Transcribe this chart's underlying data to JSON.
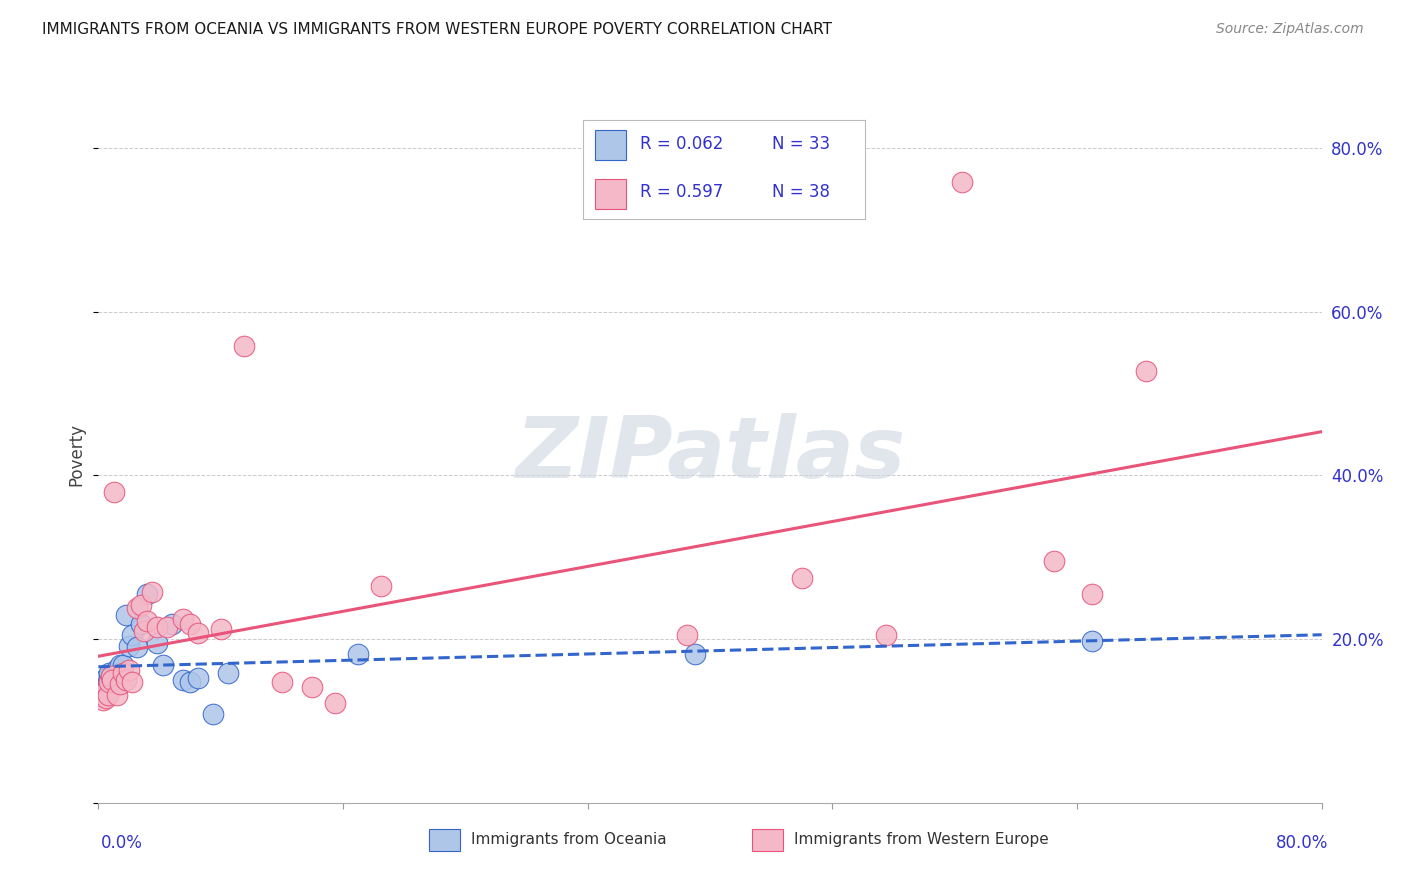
{
  "title": "IMMIGRANTS FROM OCEANIA VS IMMIGRANTS FROM WESTERN EUROPE POVERTY CORRELATION CHART",
  "source": "Source: ZipAtlas.com",
  "ylabel": "Poverty",
  "xlim": [
    0.0,
    0.8
  ],
  "ylim": [
    -0.02,
    0.92
  ],
  "plot_ylim": [
    0.0,
    0.85
  ],
  "ytick_values": [
    0.0,
    0.2,
    0.4,
    0.6,
    0.8
  ],
  "grid_color": "#cccccc",
  "background_color": "#ffffff",
  "series1_name": "Immigrants from Oceania",
  "series1_color": "#aec6e8",
  "series1_line_color": "#3366cc",
  "series1_R": 0.062,
  "series1_N": 33,
  "series2_name": "Immigrants from Western Europe",
  "series2_color": "#f4b8c8",
  "series2_line_color": "#e8547a",
  "series2_R": 0.597,
  "series2_N": 38,
  "legend_color": "#3333cc",
  "watermark_text": "ZIPatlas",
  "oceania_x": [
    0.002,
    0.003,
    0.004,
    0.005,
    0.005,
    0.006,
    0.007,
    0.007,
    0.008,
    0.009,
    0.01,
    0.011,
    0.012,
    0.013,
    0.014,
    0.016,
    0.018,
    0.02,
    0.022,
    0.025,
    0.028,
    0.032,
    0.038,
    0.042,
    0.048,
    0.055,
    0.06,
    0.065,
    0.075,
    0.085,
    0.17,
    0.39,
    0.65
  ],
  "oceania_y": [
    0.145,
    0.138,
    0.15,
    0.143,
    0.152,
    0.147,
    0.141,
    0.158,
    0.154,
    0.149,
    0.145,
    0.153,
    0.163,
    0.157,
    0.168,
    0.168,
    0.23,
    0.192,
    0.205,
    0.19,
    0.218,
    0.255,
    0.195,
    0.168,
    0.218,
    0.15,
    0.148,
    0.152,
    0.108,
    0.158,
    0.182,
    0.182,
    0.198
  ],
  "we_x": [
    0.002,
    0.003,
    0.004,
    0.005,
    0.006,
    0.007,
    0.008,
    0.009,
    0.01,
    0.012,
    0.014,
    0.016,
    0.018,
    0.02,
    0.022,
    0.025,
    0.028,
    0.03,
    0.032,
    0.035,
    0.038,
    0.045,
    0.055,
    0.06,
    0.065,
    0.08,
    0.095,
    0.12,
    0.14,
    0.155,
    0.185,
    0.385,
    0.46,
    0.515,
    0.565,
    0.625,
    0.65,
    0.685
  ],
  "we_y": [
    0.13,
    0.125,
    0.135,
    0.128,
    0.132,
    0.148,
    0.155,
    0.15,
    0.38,
    0.132,
    0.145,
    0.158,
    0.15,
    0.162,
    0.148,
    0.238,
    0.242,
    0.21,
    0.222,
    0.258,
    0.215,
    0.215,
    0.225,
    0.218,
    0.208,
    0.212,
    0.558,
    0.148,
    0.142,
    0.122,
    0.265,
    0.205,
    0.275,
    0.205,
    0.758,
    0.295,
    0.255,
    0.528
  ]
}
